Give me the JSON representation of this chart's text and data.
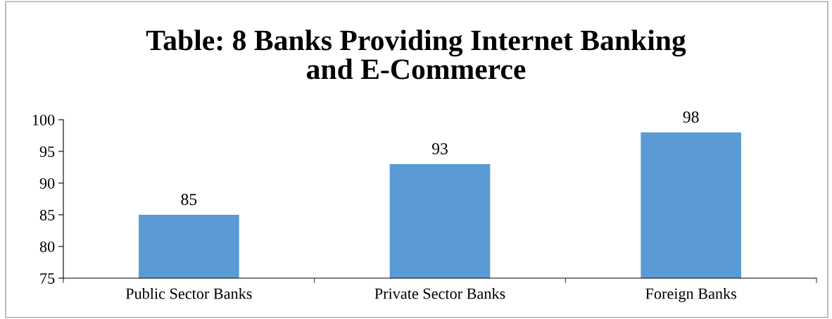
{
  "chart_data": {
    "type": "bar",
    "title": "Table: 8 Banks Providing Internet Banking\nand E-Commerce",
    "categories": [
      "Public Sector Banks",
      "Private Sector Banks",
      "Foreign Banks"
    ],
    "values": [
      85,
      93,
      98
    ],
    "color": "#5b9bd5",
    "ylim": [
      75,
      100
    ],
    "yticks": [
      75,
      80,
      85,
      90,
      95,
      100
    ],
    "grid": false,
    "data_labels": true
  }
}
